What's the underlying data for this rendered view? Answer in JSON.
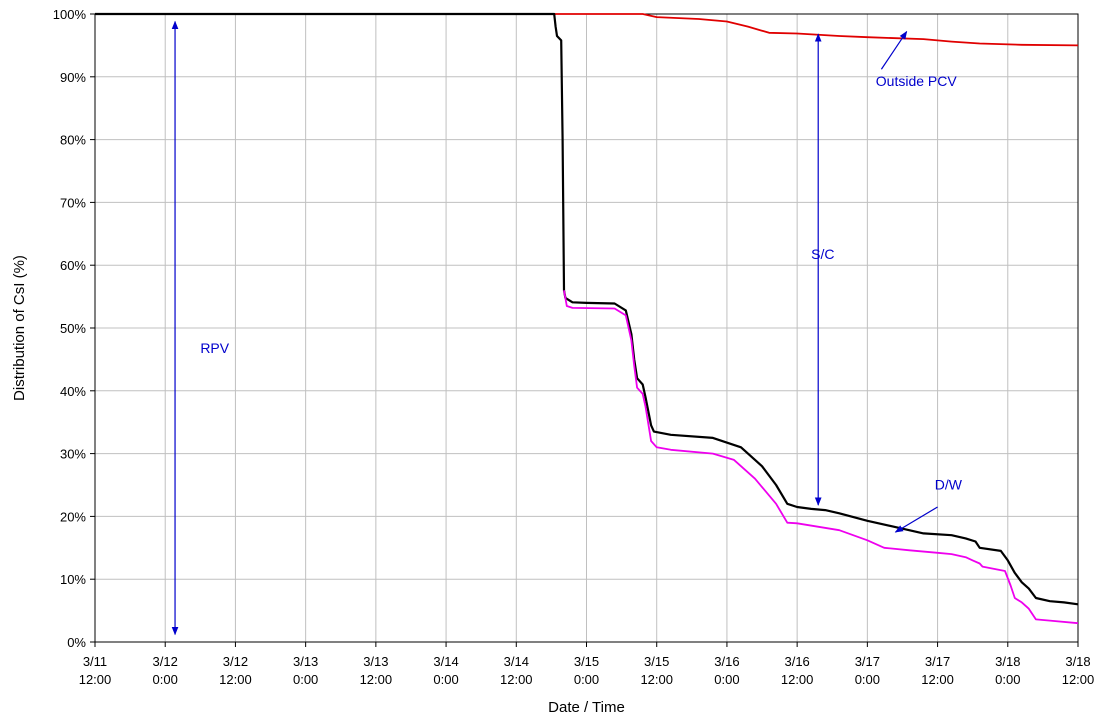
{
  "chart_data": {
    "type": "line",
    "xlabel": "Date / Time",
    "ylabel": "Distribution of CsI (%)",
    "xlim": [
      0,
      7
    ],
    "ylim": [
      0,
      100
    ],
    "x_unit": "days after 3/11 12:00",
    "x_tick_values": [
      0,
      0.5,
      1,
      1.5,
      2,
      2.5,
      3,
      3.5,
      4,
      4.5,
      5,
      5.5,
      6,
      6.5,
      7
    ],
    "x_tick_labels": [
      [
        "3/11",
        "12:00"
      ],
      [
        "3/12",
        "0:00"
      ],
      [
        "3/12",
        "12:00"
      ],
      [
        "3/13",
        "0:00"
      ],
      [
        "3/13",
        "12:00"
      ],
      [
        "3/14",
        "0:00"
      ],
      [
        "3/14",
        "12:00"
      ],
      [
        "3/15",
        "0:00"
      ],
      [
        "3/15",
        "12:00"
      ],
      [
        "3/16",
        "0:00"
      ],
      [
        "3/16",
        "12:00"
      ],
      [
        "3/17",
        "0:00"
      ],
      [
        "3/17",
        "12:00"
      ],
      [
        "3/18",
        "0:00"
      ],
      [
        "3/18",
        "12:00"
      ]
    ],
    "y_tick_values": [
      0,
      10,
      20,
      30,
      40,
      50,
      60,
      70,
      80,
      90,
      100
    ],
    "y_tick_labels": [
      "0%",
      "10%",
      "20%",
      "30%",
      "40%",
      "50%",
      "60%",
      "70%",
      "80%",
      "90%",
      "100%"
    ],
    "grid": true,
    "series": [
      {
        "color": "#e00000",
        "points": [
          [
            0,
            100
          ],
          [
            3.9,
            100
          ],
          [
            4.0,
            99.5
          ],
          [
            4.2,
            99.3
          ],
          [
            4.3,
            99.2
          ],
          [
            4.5,
            98.8
          ],
          [
            4.65,
            98
          ],
          [
            4.8,
            97
          ],
          [
            5.0,
            96.9
          ],
          [
            5.3,
            96.5
          ],
          [
            5.5,
            96.3
          ],
          [
            5.9,
            96.0
          ],
          [
            6.1,
            95.6
          ],
          [
            6.3,
            95.3
          ],
          [
            6.6,
            95.1
          ],
          [
            7.0,
            95.0
          ]
        ]
      },
      {
        "color": "#000000",
        "points": [
          [
            0,
            100
          ],
          [
            3.27,
            100
          ],
          [
            3.28,
            98
          ],
          [
            3.29,
            96.5
          ],
          [
            3.32,
            95.8
          ],
          [
            3.33,
            80
          ],
          [
            3.34,
            56
          ],
          [
            3.35,
            54.8
          ],
          [
            3.4,
            54.1
          ],
          [
            3.5,
            54
          ],
          [
            3.7,
            53.9
          ],
          [
            3.78,
            52.8
          ],
          [
            3.82,
            49
          ],
          [
            3.84,
            45
          ],
          [
            3.86,
            42
          ],
          [
            3.9,
            41
          ],
          [
            3.92,
            39
          ],
          [
            3.96,
            34.5
          ],
          [
            3.98,
            33.5
          ],
          [
            4.1,
            33
          ],
          [
            4.4,
            32.5
          ],
          [
            4.6,
            31
          ],
          [
            4.75,
            28
          ],
          [
            4.85,
            25
          ],
          [
            4.93,
            22
          ],
          [
            5.0,
            21.5
          ],
          [
            5.1,
            21.2
          ],
          [
            5.2,
            21
          ],
          [
            5.3,
            20.5
          ],
          [
            5.5,
            19.3
          ],
          [
            5.7,
            18.3
          ],
          [
            5.9,
            17.3
          ],
          [
            6.1,
            17
          ],
          [
            6.2,
            16.5
          ],
          [
            6.27,
            16
          ],
          [
            6.3,
            15
          ],
          [
            6.45,
            14.5
          ],
          [
            6.5,
            13
          ],
          [
            6.55,
            11
          ],
          [
            6.6,
            9.5
          ],
          [
            6.65,
            8.5
          ],
          [
            6.7,
            7
          ],
          [
            6.8,
            6.5
          ],
          [
            6.9,
            6.3
          ],
          [
            7.0,
            6.0
          ]
        ]
      },
      {
        "color": "#ee00ee",
        "points": [
          [
            3.34,
            56
          ],
          [
            3.36,
            53.5
          ],
          [
            3.4,
            53.2
          ],
          [
            3.7,
            53.1
          ],
          [
            3.78,
            52
          ],
          [
            3.82,
            48
          ],
          [
            3.84,
            44
          ],
          [
            3.86,
            40.5
          ],
          [
            3.9,
            39.5
          ],
          [
            3.92,
            37.5
          ],
          [
            3.96,
            32
          ],
          [
            4.0,
            31
          ],
          [
            4.1,
            30.6
          ],
          [
            4.4,
            30
          ],
          [
            4.55,
            29
          ],
          [
            4.7,
            26
          ],
          [
            4.85,
            22
          ],
          [
            4.93,
            19
          ],
          [
            5.0,
            18.9
          ],
          [
            5.3,
            17.8
          ],
          [
            5.5,
            16.2
          ],
          [
            5.62,
            15
          ],
          [
            5.8,
            14.6
          ],
          [
            6.0,
            14.2
          ],
          [
            6.1,
            14
          ],
          [
            6.2,
            13.5
          ],
          [
            6.25,
            13
          ],
          [
            6.3,
            12.5
          ],
          [
            6.32,
            12
          ],
          [
            6.48,
            11.3
          ],
          [
            6.52,
            9
          ],
          [
            6.55,
            7
          ],
          [
            6.6,
            6.3
          ],
          [
            6.65,
            5.3
          ],
          [
            6.7,
            3.6
          ],
          [
            6.8,
            3.4
          ],
          [
            7.0,
            3.0
          ]
        ]
      }
    ],
    "annotations": [
      {
        "text": "RPV",
        "x": 0.75,
        "y": 46
      },
      {
        "text": "S/C",
        "x": 5.1,
        "y": 61
      },
      {
        "text": "Outside PCV",
        "x": 5.56,
        "y": 88.5
      },
      {
        "text": "D/W",
        "x": 5.98,
        "y": 24.3
      }
    ],
    "double_arrows": [
      {
        "x": 0.57,
        "y1": 98.8,
        "y2": 1.2
      },
      {
        "x": 5.15,
        "y1": 96.8,
        "y2": 21.8
      }
    ],
    "pointer_arrows": [
      {
        "from": [
          5.6,
          91.2
        ],
        "to": [
          5.78,
          97.2
        ]
      },
      {
        "from": [
          6.0,
          21.5
        ],
        "to": [
          5.7,
          17.5
        ]
      }
    ],
    "colors": {
      "annotation": "#0000cc",
      "grid": "#c0c0c0",
      "axis": "#000000"
    }
  }
}
